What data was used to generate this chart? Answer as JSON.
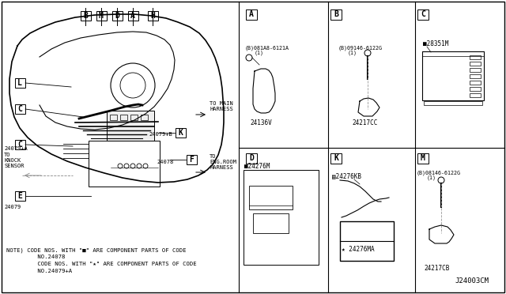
{
  "bg_color": "#ffffff",
  "line_color": "#000000",
  "fig_width": 6.4,
  "fig_height": 3.72,
  "note_line1": "NOTE) CODE NOS. WITH \"■\" ARE COMPONENT PARTS OF CODE",
  "note_line2": "         NO.24078",
  "note_line3": "         CODE NOS. WITH \"★\" ARE COMPONENT PARTS OF CODE",
  "note_line4": "         NO.24079+A",
  "bottom_code": "J24003CM",
  "top_labels": [
    [
      "B",
      108
    ],
    [
      "M",
      128
    ],
    [
      "D",
      148
    ],
    [
      "A",
      168
    ],
    [
      "H",
      193
    ]
  ],
  "partA": [
    "(B)081A8-6121A",
    "(1)",
    "24136V"
  ],
  "partB": [
    "(B)09146-6122G",
    "(1)",
    "24217CC"
  ],
  "partC": [
    "■28351M"
  ],
  "partD": [
    "■24276M"
  ],
  "partK": [
    "▤24276KB",
    "★ 24276MA"
  ],
  "partM": [
    "(B)08146-6122G",
    "(1)",
    "24217CB"
  ]
}
